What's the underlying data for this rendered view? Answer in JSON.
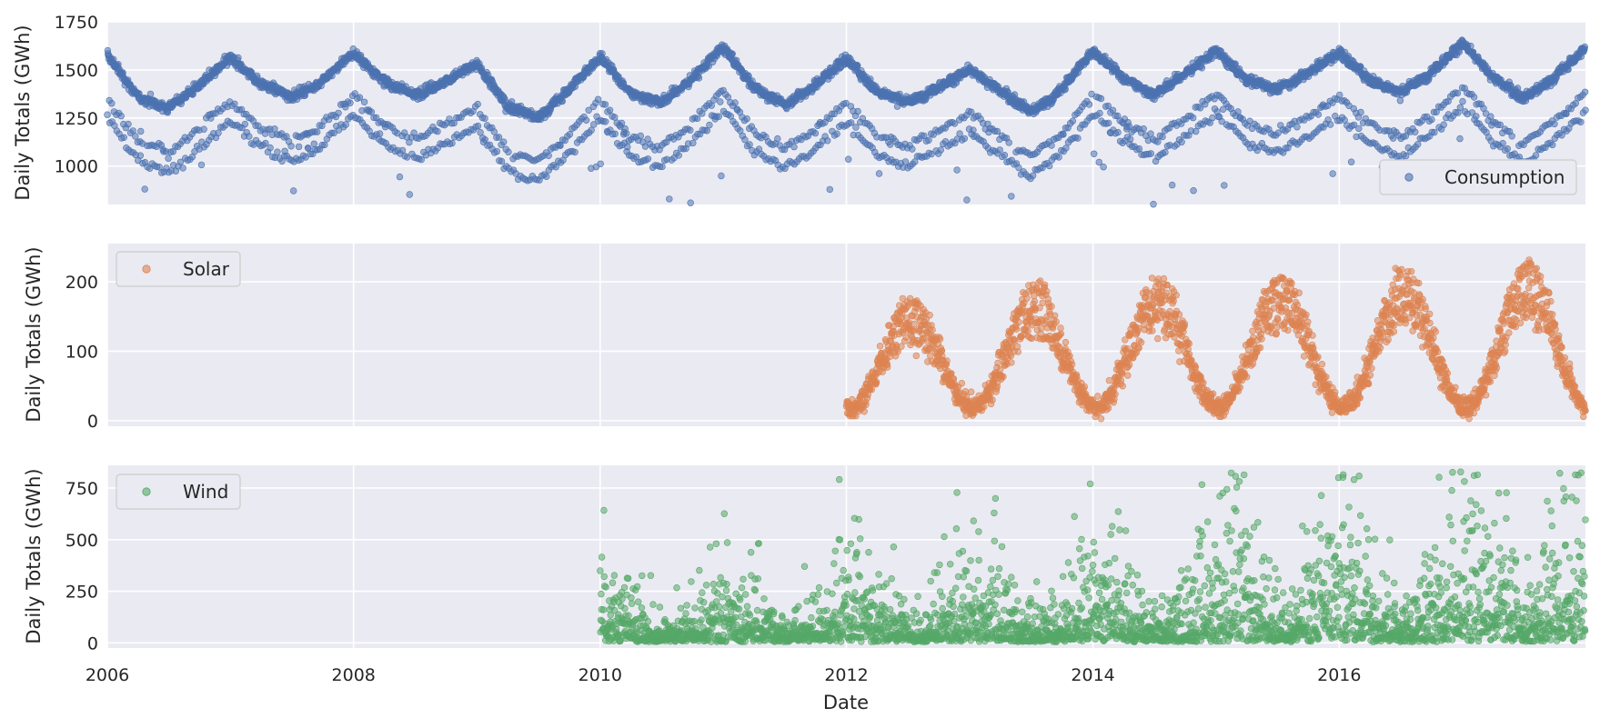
{
  "chart_data": [
    {
      "type": "scatter",
      "ylabel": "Daily Totals (GWh)",
      "legend_position": "lower-right",
      "grid": true,
      "xlim": [
        "2006-01-01",
        "2017-12-31"
      ],
      "ylim": [
        800,
        1750
      ],
      "yticks": [
        1000,
        1250,
        1500,
        1750
      ],
      "series": [
        {
          "name": "Consumption",
          "color": "#4c72b0",
          "weekday_trend": [
            [
              "2006-01-01",
              1580
            ],
            [
              "2006-04-01",
              1360
            ],
            [
              "2006-07-01",
              1300
            ],
            [
              "2006-09-15",
              1400
            ],
            [
              "2007-01-01",
              1560
            ],
            [
              "2007-04-01",
              1430
            ],
            [
              "2007-07-01",
              1360
            ],
            [
              "2007-09-15",
              1420
            ],
            [
              "2008-01-01",
              1590
            ],
            [
              "2008-04-01",
              1440
            ],
            [
              "2008-07-01",
              1370
            ],
            [
              "2008-09-15",
              1430
            ],
            [
              "2009-01-01",
              1530
            ],
            [
              "2009-04-01",
              1310
            ],
            [
              "2009-07-01",
              1250
            ],
            [
              "2009-09-15",
              1370
            ],
            [
              "2010-01-01",
              1570
            ],
            [
              "2010-04-01",
              1380
            ],
            [
              "2010-07-01",
              1330
            ],
            [
              "2010-09-15",
              1430
            ],
            [
              "2011-01-01",
              1620
            ],
            [
              "2011-04-01",
              1410
            ],
            [
              "2011-07-01",
              1320
            ],
            [
              "2011-09-15",
              1400
            ],
            [
              "2012-01-01",
              1560
            ],
            [
              "2012-04-01",
              1390
            ],
            [
              "2012-07-01",
              1330
            ],
            [
              "2012-09-15",
              1400
            ],
            [
              "2013-01-01",
              1500
            ],
            [
              "2013-04-01",
              1390
            ],
            [
              "2013-07-01",
              1280
            ],
            [
              "2013-09-15",
              1370
            ],
            [
              "2014-01-01",
              1600
            ],
            [
              "2014-04-01",
              1460
            ],
            [
              "2014-07-01",
              1370
            ],
            [
              "2014-09-15",
              1460
            ],
            [
              "2015-01-01",
              1600
            ],
            [
              "2015-04-01",
              1450
            ],
            [
              "2015-07-01",
              1400
            ],
            [
              "2015-09-15",
              1470
            ],
            [
              "2016-01-01",
              1590
            ],
            [
              "2016-04-01",
              1450
            ],
            [
              "2016-07-01",
              1380
            ],
            [
              "2016-09-15",
              1470
            ],
            [
              "2017-01-01",
              1640
            ],
            [
              "2017-04-01",
              1460
            ],
            [
              "2017-07-01",
              1350
            ],
            [
              "2017-09-15",
              1440
            ],
            [
              "2017-12-31",
              1610
            ]
          ],
          "weekend_offsets": [
            -230,
            -330
          ]
        }
      ]
    },
    {
      "type": "scatter",
      "ylabel": "Daily Totals (GWh)",
      "legend_position": "upper-left",
      "grid": true,
      "xlim": [
        "2006-01-01",
        "2017-12-31"
      ],
      "ylim": [
        -8,
        255
      ],
      "yticks": [
        0,
        100,
        200
      ],
      "series": [
        {
          "name": "Solar",
          "color": "#dd8452",
          "data_start": "2012-01-01",
          "summer_peak": [
            [
              "2012",
              150
            ],
            [
              "2013",
              165
            ],
            [
              "2014",
              175
            ],
            [
              "2015",
              180
            ],
            [
              "2016",
              185
            ],
            [
              "2017",
              190
            ]
          ],
          "winter_level": 20,
          "max": 240
        }
      ]
    },
    {
      "type": "scatter",
      "ylabel": "Daily Totals (GWh)",
      "xlabel": "Date",
      "legend_position": "upper-left",
      "grid": true,
      "xlim": [
        "2006-01-01",
        "2017-12-31"
      ],
      "ylim": [
        -25,
        860
      ],
      "yticks": [
        0,
        250,
        500,
        750
      ],
      "xticks": [
        "2006",
        "2008",
        "2010",
        "2012",
        "2014",
        "2016"
      ],
      "series": [
        {
          "name": "Wind",
          "color": "#55a868",
          "data_start": "2010-01-01",
          "mean_by_year": [
            [
              "2010",
              90
            ],
            [
              "2011",
              110
            ],
            [
              "2012",
              120
            ],
            [
              "2013",
              130
            ],
            [
              "2014",
              150
            ],
            [
              "2015",
              200
            ],
            [
              "2016",
              210
            ],
            [
              "2017",
              260
            ]
          ],
          "max": 830
        }
      ]
    }
  ]
}
